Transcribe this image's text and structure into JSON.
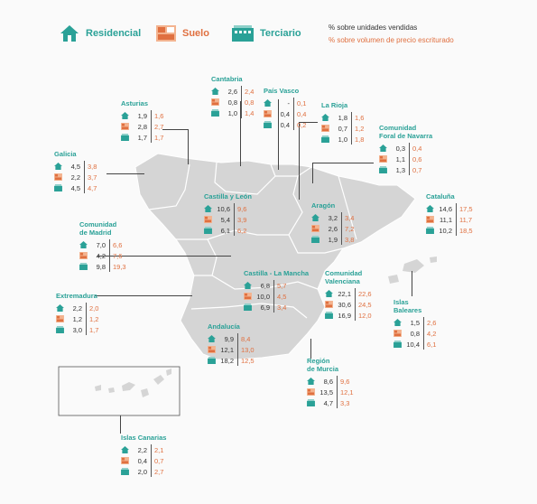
{
  "legend": {
    "residencial": "Residencial",
    "suelo": "Suelo",
    "terciario": "Terciario",
    "note_units": "% sobre unidades vendidas",
    "note_price": "% sobre volumen de precio escriturado"
  },
  "colors": {
    "teal": "#2aa197",
    "orange": "#e07040",
    "land": "#d5d5d5",
    "border": "#ffffff"
  },
  "regions": [
    {
      "name": "Asturias",
      "res": [
        "1,9",
        "1,6"
      ],
      "sue": [
        "2,8",
        "2,7"
      ],
      "ter": [
        "1,7",
        "1,7"
      ]
    },
    {
      "name": "Cantabria",
      "res": [
        "2,6",
        "2,4"
      ],
      "sue": [
        "0,8",
        "0,8"
      ],
      "ter": [
        "1,0",
        "1,4"
      ]
    },
    {
      "name": "País Vasco",
      "res": [
        "-",
        "0,1"
      ],
      "sue": [
        "0,4",
        "0,4"
      ],
      "ter": [
        "0,4",
        "0,2"
      ]
    },
    {
      "name": "La Rioja",
      "res": [
        "1,8",
        "1,6"
      ],
      "sue": [
        "0,7",
        "1,2"
      ],
      "ter": [
        "1,0",
        "1,8"
      ]
    },
    {
      "name": "Comunidad\nForal de Navarra",
      "res": [
        "0,3",
        "0,4"
      ],
      "sue": [
        "1,1",
        "0,6"
      ],
      "ter": [
        "1,3",
        "0,7"
      ]
    },
    {
      "name": "Galicia",
      "res": [
        "4,5",
        "3,8"
      ],
      "sue": [
        "2,2",
        "3,7"
      ],
      "ter": [
        "4,5",
        "4,7"
      ]
    },
    {
      "name": "Castilla y León",
      "res": [
        "10,6",
        "9,6"
      ],
      "sue": [
        "5,4",
        "3,9"
      ],
      "ter": [
        "6,1",
        "6,2"
      ]
    },
    {
      "name": "Aragón",
      "res": [
        "3,2",
        "3,4"
      ],
      "sue": [
        "2,6",
        "7,2"
      ],
      "ter": [
        "1,9",
        "3,8"
      ]
    },
    {
      "name": "Cataluña",
      "res": [
        "14,6",
        "17,5"
      ],
      "sue": [
        "11,1",
        "11,7"
      ],
      "ter": [
        "10,2",
        "18,5"
      ]
    },
    {
      "name": "Comunidad\nde Madrid",
      "res": [
        "7,0",
        "6,6"
      ],
      "sue": [
        "4,2",
        "7,6"
      ],
      "ter": [
        "9,8",
        "19,3"
      ]
    },
    {
      "name": "Castilla - La Mancha",
      "res": [
        "6,8",
        "5,7"
      ],
      "sue": [
        "10,0",
        "4,5"
      ],
      "ter": [
        "6,9",
        "3,4"
      ]
    },
    {
      "name": "Comunidad\nValenciana",
      "res": [
        "22,1",
        "22,6"
      ],
      "sue": [
        "30,6",
        "24,5"
      ],
      "ter": [
        "16,9",
        "12,0"
      ]
    },
    {
      "name": "Extremadura",
      "res": [
        "2,2",
        "2,0"
      ],
      "sue": [
        "1,2",
        "1,2"
      ],
      "ter": [
        "3,0",
        "1,7"
      ]
    },
    {
      "name": "Islas\nBaleares",
      "res": [
        "1,5",
        "2,6"
      ],
      "sue": [
        "0,8",
        "4,2"
      ],
      "ter": [
        "10,4",
        "6,1"
      ]
    },
    {
      "name": "Andalucía",
      "res": [
        "9,9",
        "8,4"
      ],
      "sue": [
        "12,1",
        "13,0"
      ],
      "ter": [
        "18,2",
        "12,5"
      ]
    },
    {
      "name": "Región\nde Murcia",
      "res": [
        "8,6",
        "9,6"
      ],
      "sue": [
        "13,5",
        "12,1"
      ],
      "ter": [
        "4,7",
        "3,3"
      ]
    },
    {
      "name": "Islas Canarias",
      "res": [
        "2,2",
        "2,1"
      ],
      "sue": [
        "0,4",
        "0,7"
      ],
      "ter": [
        "2,0",
        "2,7"
      ]
    }
  ]
}
